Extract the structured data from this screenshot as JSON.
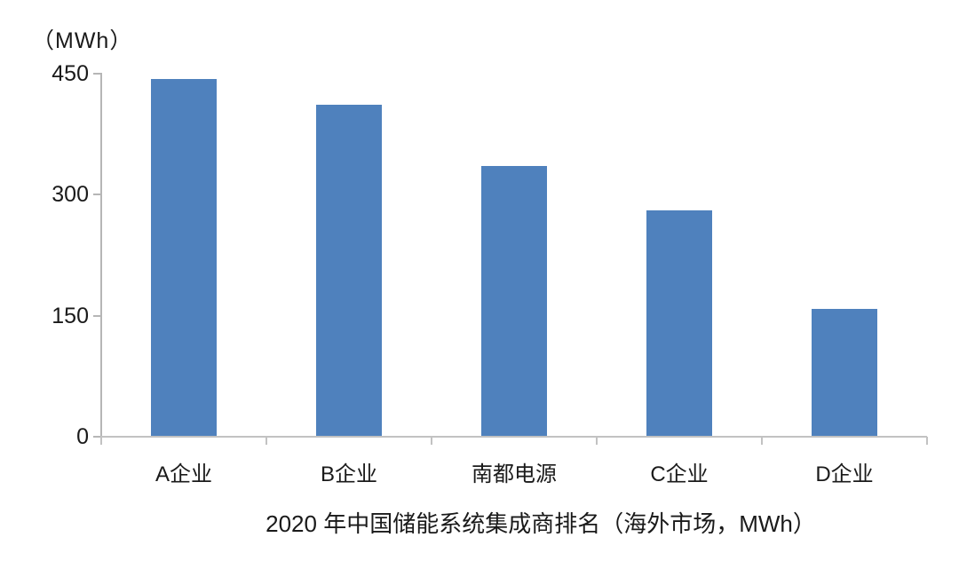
{
  "chart_data": {
    "type": "bar",
    "title": "2020 年中国储能系统集成商排名（海外市场，MWh）",
    "unit_label": "（MWh）",
    "categories": [
      "A企业",
      "B企业",
      "南都电源",
      "C企业",
      "D企业"
    ],
    "values": [
      443,
      412,
      336,
      281,
      158
    ],
    "xlabel": "2020 年中国储能系统集成商排名（海外市场，MWh）",
    "ylabel": "（MWh）",
    "ylim": [
      0,
      450
    ],
    "yticks": [
      0,
      150,
      300,
      450
    ],
    "grid": false,
    "legend": false,
    "bar_color": "#4F81BD",
    "axis_color": "#b6b6b6",
    "text_color": "#1a1a1a",
    "background_color": "#ffffff"
  }
}
